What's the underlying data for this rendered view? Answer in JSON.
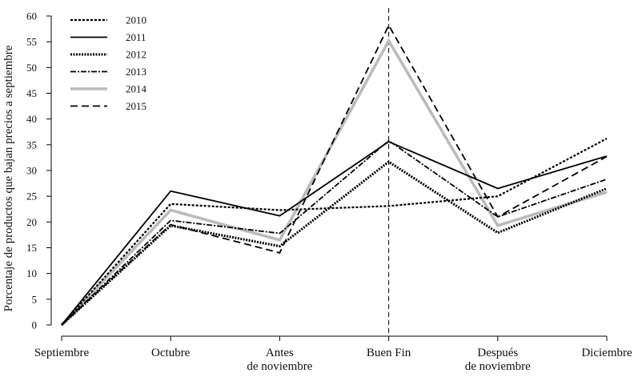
{
  "chart_data": {
    "type": "line",
    "title": "",
    "xlabel": "",
    "ylabel": "Porcentaje de productos que bajan precios a septiembre",
    "categories": [
      [
        "Septiembre"
      ],
      [
        "Octubre"
      ],
      [
        "Antes",
        "de noviembre"
      ],
      [
        "Buen Fin"
      ],
      [
        "Después",
        "de noviembre"
      ],
      [
        "Diciembre"
      ]
    ],
    "ylim": [
      0,
      60
    ],
    "yticks": [
      0,
      5,
      10,
      15,
      20,
      25,
      30,
      35,
      40,
      45,
      50,
      55,
      60
    ],
    "grid": false,
    "legend_position": "top-left",
    "reference_line": {
      "category": "Buen Fin",
      "style": "dashed"
    },
    "series": [
      {
        "name": "2010",
        "values": [
          0,
          23.5,
          22.3,
          23.1,
          25,
          36.2
        ],
        "color": "#000000",
        "style": "dotted"
      },
      {
        "name": "2011",
        "values": [
          0,
          26,
          21.2,
          35.6,
          26.5,
          32.8
        ],
        "color": "#000000",
        "style": "solid"
      },
      {
        "name": "2012",
        "values": [
          0,
          19.3,
          15.3,
          31.7,
          17.9,
          26.5
        ],
        "color": "#000000",
        "style": "double-dotted"
      },
      {
        "name": "2013",
        "values": [
          0,
          20.3,
          17.8,
          35.8,
          21,
          28.3
        ],
        "color": "#000000",
        "style": "dash-dot"
      },
      {
        "name": "2014",
        "values": [
          0,
          22.3,
          16.5,
          55.2,
          19.3,
          25.8
        ],
        "color": "#bbbbbb",
        "style": "thick"
      },
      {
        "name": "2015",
        "values": [
          0,
          19.5,
          14,
          58.2,
          21,
          32.7
        ],
        "color": "#000000",
        "style": "dashed"
      }
    ]
  }
}
